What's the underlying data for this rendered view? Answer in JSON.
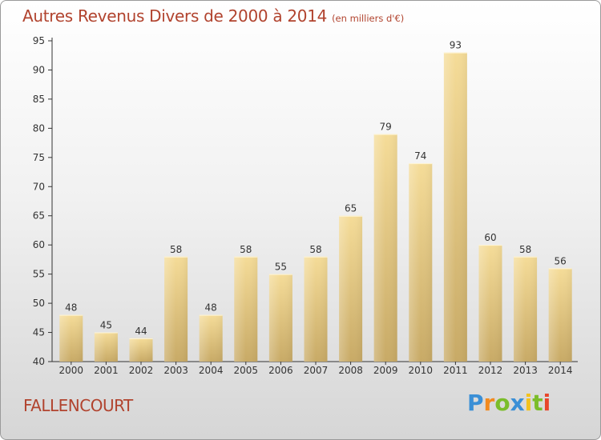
{
  "chart_data": {
    "type": "bar",
    "title": "Autres Revenus Divers de 2000 à 2014",
    "subtitle": "(en milliers d'€)",
    "categories": [
      "2000",
      "2001",
      "2002",
      "2003",
      "2004",
      "2005",
      "2006",
      "2007",
      "2008",
      "2009",
      "2010",
      "2011",
      "2012",
      "2013",
      "2014"
    ],
    "values": [
      48,
      45,
      44,
      58,
      48,
      58,
      55,
      58,
      65,
      79,
      74,
      93,
      60,
      58,
      56
    ],
    "ylim": [
      40,
      95
    ],
    "yticks": [
      40,
      45,
      50,
      55,
      60,
      65,
      70,
      75,
      80,
      85,
      90,
      95
    ],
    "grid": false,
    "bar_color_top": "#f5dc98",
    "bar_color_bottom": "#c8aa66"
  },
  "place_name": "FALLENCOURT",
  "logo": {
    "text": "Proxiti",
    "letters": [
      {
        "ch": "P",
        "color": "#3a8fd6"
      },
      {
        "ch": "r",
        "color": "#f28a1e"
      },
      {
        "ch": "o",
        "color": "#7bbd2a"
      },
      {
        "ch": "x",
        "color": "#3a8fd6"
      },
      {
        "ch": "i",
        "color": "#f2c21e"
      },
      {
        "ch": "t",
        "color": "#7bbd2a"
      },
      {
        "ch": "i",
        "color": "#e8462b"
      }
    ]
  }
}
